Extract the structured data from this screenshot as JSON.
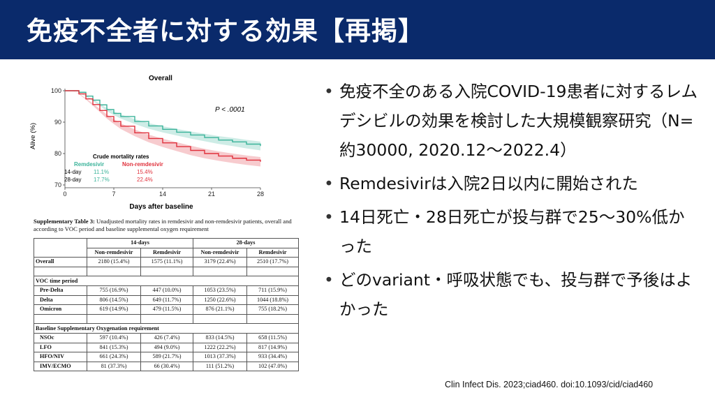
{
  "header": {
    "title": "免疫不全者に対する効果【再掲】"
  },
  "chart_data": {
    "type": "line",
    "title": "Overall",
    "xlabel": "Days after baseline",
    "ylabel": "Alive (%)",
    "xlim": [
      0,
      28
    ],
    "ylim": [
      70,
      100
    ],
    "x_ticks": [
      0,
      7,
      14,
      21,
      28
    ],
    "y_ticks": [
      70,
      80,
      90,
      100
    ],
    "p_value_label": "P < .0001",
    "grid": false,
    "series": [
      {
        "name": "Remdesivir",
        "color": "#3bb39a",
        "x": [
          0,
          1,
          2,
          3,
          4,
          5,
          6,
          7,
          8,
          10,
          12,
          14,
          16,
          18,
          20,
          22,
          24,
          26,
          28
        ],
        "y": [
          100,
          100,
          99.5,
          98.3,
          97,
          95.5,
          94,
          92.8,
          91.8,
          90.2,
          88.8,
          87.7,
          86.8,
          85.9,
          85.1,
          84.3,
          83.7,
          83.0,
          82.4
        ]
      },
      {
        "name": "Non-remdesivir",
        "color": "#e0313c",
        "x": [
          0,
          1,
          2,
          3,
          4,
          5,
          6,
          7,
          8,
          10,
          12,
          14,
          16,
          18,
          20,
          22,
          24,
          26,
          28
        ],
        "y": [
          100,
          100,
          99,
          97.4,
          95.6,
          93.7,
          91.8,
          90.2,
          88.7,
          86.6,
          84.8,
          83.4,
          82.2,
          81.0,
          80.0,
          79.2,
          78.5,
          77.9,
          77.4
        ]
      }
    ],
    "crude_table": {
      "title": "Crude mortality rates",
      "col_remdesivir": "Remdesivir",
      "col_non": "Non-remdesivir",
      "rows": [
        {
          "label": "14-day",
          "remdesivir": "11.1%",
          "non": "15.4%"
        },
        {
          "label": "28-day",
          "remdesivir": "17.7%",
          "non": "22.4%"
        }
      ]
    }
  },
  "table": {
    "caption_bold": "Supplementary Table 3:",
    "caption_rest": " Unadjusted mortality rates in remdesivir and non-remdesivir patients, overall and according to VOC period and baseline supplemental oxygen requirement",
    "group_14": "14-days",
    "group_28": "28-days",
    "col_non": "Non-remdesivir",
    "col_rem": "Remdesivir",
    "overall": {
      "label": "Overall",
      "v": [
        "2180 (15.4%)",
        "1575 (11.1%)",
        "3179 (22.4%)",
        "2510 (17.7%)"
      ]
    },
    "voc_title": "VOC time period",
    "voc_rows": [
      {
        "label": "Pre-Delta",
        "v": [
          "755 (16.9%)",
          "447 (10.0%)",
          "1053 (23.5%)",
          "711 (15.9%)"
        ]
      },
      {
        "label": "Delta",
        "v": [
          "806 (14.5%)",
          "649 (11.7%)",
          "1250 (22.6%)",
          "1044 (18.8%)"
        ]
      },
      {
        "label": "Omicron",
        "v": [
          "619 (14.9%)",
          "479 (11.5%)",
          "876 (21.1%)",
          "755 (18.2%)"
        ]
      }
    ],
    "oxy_title": "Baseline Supplementary Oxygenation requirement",
    "oxy_rows": [
      {
        "label": "NSOc",
        "v": [
          "597 (10.4%)",
          "426 (7.4%)",
          "833 (14.5%)",
          "658 (11.5%)"
        ]
      },
      {
        "label": "LFO",
        "v": [
          "841 (15.3%)",
          "494 (9.0%)",
          "1222 (22.2%)",
          "817 (14.9%)"
        ]
      },
      {
        "label": "HFO/NIV",
        "v": [
          "661 (24.3%)",
          "589 (21.7%)",
          "1013 (37.3%)",
          "933 (34.4%)"
        ]
      },
      {
        "label": "IMV/ECMO",
        "v": [
          "81 (37.3%)",
          "66 (30.4%)",
          "111 (51.2%)",
          "102 (47.0%)"
        ]
      }
    ]
  },
  "bullets": [
    "免疫不全のある入院COVID-19患者に対するレムデシビルの効果を検討した大規模観察研究（N=約30000, 2020.12〜2022.4）",
    "Remdesivirは入院2日以内に開始された",
    "14日死亡・28日死亡が投与群で25〜30%低かった",
    "どのvariant・呼吸状態でも、投与群で予後はよかった"
  ],
  "citation": "Clin Infect Dis. 2023;ciad460. doi:10.1093/cid/ciad460"
}
